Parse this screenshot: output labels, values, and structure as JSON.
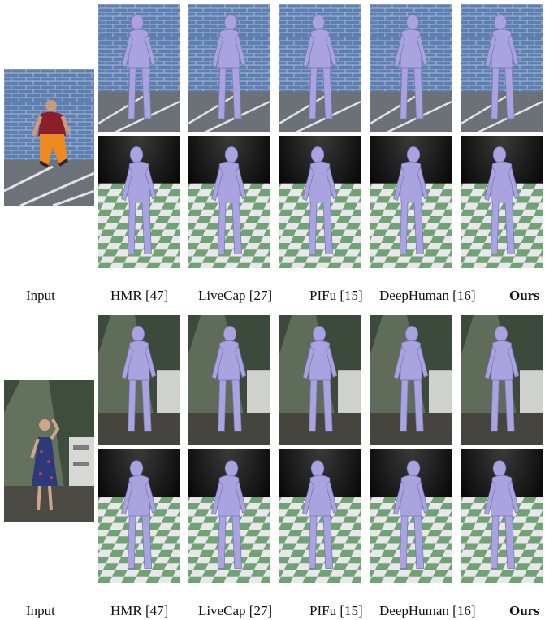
{
  "figure": {
    "rows": [
      {
        "id": "top",
        "input_label": "Input",
        "method_labels": [
          "HMR [47]",
          "LiveCap [27]",
          "PIFu [15]",
          "DeepHuman [16]",
          "Ours"
        ],
        "input_scene": "brick-wall",
        "result_scene": "brick-wall"
      },
      {
        "id": "bottom",
        "input_label": "Input",
        "method_labels": [
          "HMR [47]",
          "LiveCap [27]",
          "PIFu [15]",
          "DeepHuman [16]",
          "Ours"
        ],
        "input_scene": "indoor-room",
        "result_scene": "indoor-room"
      }
    ]
  },
  "colors": {
    "brick": "#5f7fb0",
    "mortar": "#a9bbd6",
    "mesh": "#a9a4e0",
    "checker_light": "#e9e6ec",
    "checker_green": "#6fa374",
    "room": "#3b4a3a"
  }
}
